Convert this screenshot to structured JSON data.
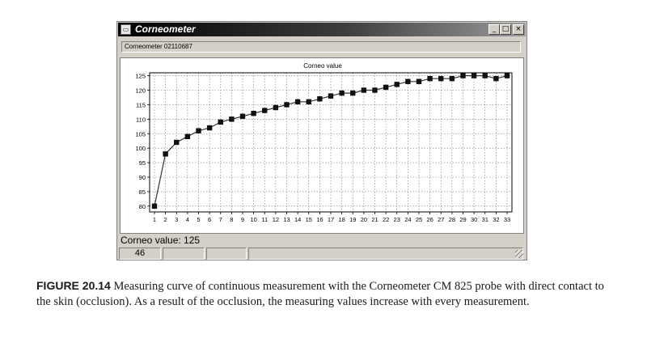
{
  "window": {
    "title": "Corneometer",
    "icon": "app-window-icon",
    "controls": [
      "_",
      "□",
      "×"
    ]
  },
  "serial_field": {
    "value": "Corneometer 02110687"
  },
  "chart_data": {
    "type": "line",
    "title": "Corneo value",
    "xlabel": "",
    "ylabel": "",
    "categories": [
      "1",
      "2",
      "3",
      "4",
      "5",
      "6",
      "7",
      "8",
      "9",
      "10",
      "11",
      "12",
      "13",
      "14",
      "15",
      "16",
      "17",
      "18",
      "19",
      "20",
      "21",
      "22",
      "23",
      "24",
      "25",
      "26",
      "27",
      "28",
      "29",
      "30",
      "31",
      "32",
      "33"
    ],
    "values": [
      80,
      98,
      102,
      104,
      106,
      107,
      109,
      110,
      111,
      112,
      113,
      114,
      115,
      116,
      116,
      117,
      118,
      119,
      119,
      120,
      120,
      121,
      122,
      123,
      123,
      124,
      124,
      124,
      125,
      125,
      125,
      124,
      125
    ],
    "yticks": [
      80,
      85,
      90,
      95,
      100,
      105,
      110,
      115,
      120,
      125
    ],
    "ylim": [
      78,
      126
    ],
    "grid": true,
    "marker": "square",
    "line_color": "#333333",
    "marker_color": "#111111"
  },
  "status": {
    "label": "Corneo value: 125"
  },
  "statusbar": {
    "count": "46"
  },
  "caption": {
    "label": "FIGURE 20.14",
    "text": "Measuring curve of continuous measurement with the Corneometer CM 825 probe with direct contact to the skin (occlusion). As a result of the occlusion, the measuring values increase with every measurement."
  }
}
